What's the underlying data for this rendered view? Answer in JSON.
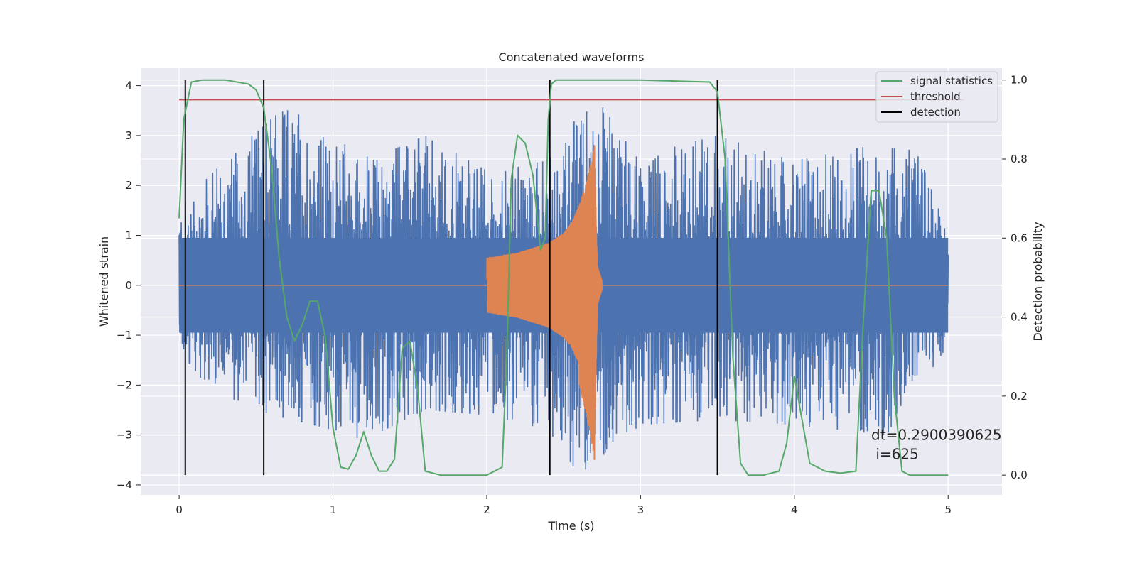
{
  "chart_data": {
    "type": "line",
    "title": "Concatenated waveforms",
    "xlabel": "Time (s)",
    "ylabel": "Whitened strain",
    "y2label": "Detection probability",
    "xlim": [
      -0.25,
      5.35
    ],
    "ylim": [
      -4.2,
      4.35
    ],
    "y2lim": [
      -0.05,
      1.03
    ],
    "x_ticks": [
      0,
      1,
      2,
      3,
      4,
      5
    ],
    "y_ticks": [
      -4,
      -3,
      -2,
      -1,
      0,
      1,
      2,
      3,
      4
    ],
    "y2_ticks": [
      0.0,
      0.2,
      0.4,
      0.6,
      0.8,
      1.0
    ],
    "x_tick_labels": [
      "0",
      "1",
      "2",
      "3",
      "4",
      "5"
    ],
    "y_tick_labels": [
      "−4",
      "−3",
      "−2",
      "−1",
      "0",
      "1",
      "2",
      "3",
      "4"
    ],
    "y2_tick_labels": [
      "0.0",
      "0.2",
      "0.4",
      "0.6",
      "0.8",
      "1.0"
    ],
    "grid": true,
    "legend": {
      "placement": "upper right",
      "entries": [
        {
          "label": "signal statistics",
          "color": "#55a868"
        },
        {
          "label": "threshold",
          "color": "#c44e52"
        },
        {
          "label": "detection",
          "color": "#000000"
        }
      ]
    },
    "colors": {
      "noise": "#4c72b0",
      "waveform": "#dd8452",
      "statistics": "#55a868",
      "threshold": "#c44e52",
      "detection": "#000000",
      "background": "#eaeaf2",
      "grid": "#ffffff"
    },
    "noise_series": {
      "description_free": true,
      "x_range": [
        0,
        5
      ],
      "envelope_points": [
        [
          0.0,
          1.6
        ],
        [
          0.2,
          2.2
        ],
        [
          0.4,
          2.8
        ],
        [
          0.7,
          3.6
        ],
        [
          1.0,
          2.9
        ],
        [
          1.3,
          2.6
        ],
        [
          1.6,
          3.0
        ],
        [
          2.0,
          2.3
        ],
        [
          2.4,
          2.5
        ],
        [
          2.7,
          3.9
        ],
        [
          3.0,
          2.6
        ],
        [
          3.5,
          3.0
        ],
        [
          4.0,
          2.5
        ],
        [
          4.5,
          2.8
        ],
        [
          4.8,
          2.7
        ],
        [
          5.0,
          1.0
        ]
      ],
      "low_points": [
        [
          0.0,
          -1.3
        ],
        [
          0.2,
          -2.1
        ],
        [
          0.6,
          -2.6
        ],
        [
          1.0,
          -2.9
        ],
        [
          1.2,
          -3.1
        ],
        [
          1.6,
          -2.5
        ],
        [
          2.0,
          -2.6
        ],
        [
          2.4,
          -2.9
        ],
        [
          2.6,
          -3.8
        ],
        [
          3.0,
          -2.8
        ],
        [
          3.5,
          -2.7
        ],
        [
          4.0,
          -2.8
        ],
        [
          4.6,
          -3.0
        ],
        [
          5.0,
          -1.2
        ]
      ]
    },
    "waveform_series": {
      "x_range": [
        2.0,
        3.0
      ],
      "envelope": [
        [
          2.0,
          0.55
        ],
        [
          2.1,
          0.6
        ],
        [
          2.2,
          0.65
        ],
        [
          2.3,
          0.75
        ],
        [
          2.4,
          0.85
        ],
        [
          2.5,
          1.05
        ],
        [
          2.55,
          1.25
        ],
        [
          2.6,
          1.6
        ],
        [
          2.65,
          2.1
        ],
        [
          2.68,
          2.5
        ],
        [
          2.7,
          2.8
        ],
        [
          2.72,
          0.4
        ],
        [
          2.75,
          0.1
        ],
        [
          2.8,
          0.05
        ],
        [
          3.0,
          0.0
        ]
      ],
      "min_peak": -3.5
    },
    "statistics_series": {
      "name": "signal statistics",
      "x": [
        0.0,
        0.03,
        0.08,
        0.15,
        0.3,
        0.45,
        0.5,
        0.55,
        0.6,
        0.65,
        0.7,
        0.75,
        0.8,
        0.85,
        0.9,
        0.95,
        1.0,
        1.05,
        1.1,
        1.15,
        1.2,
        1.25,
        1.3,
        1.35,
        1.4,
        1.45,
        1.5,
        1.55,
        1.6,
        1.7,
        1.8,
        1.9,
        2.0,
        2.1,
        2.13,
        2.16,
        2.2,
        2.25,
        2.3,
        2.35,
        2.38,
        2.4,
        2.42,
        2.45,
        2.5,
        3.0,
        3.45,
        3.5,
        3.55,
        3.6,
        3.65,
        3.7,
        3.8,
        3.9,
        3.95,
        4.0,
        4.1,
        4.2,
        4.3,
        4.4,
        4.45,
        4.5,
        4.55,
        4.6,
        4.65,
        4.7,
        4.75,
        4.8,
        4.9,
        5.0
      ],
      "y": [
        0.65,
        0.9,
        0.995,
        1.0,
        1.0,
        0.99,
        0.975,
        0.93,
        0.78,
        0.55,
        0.4,
        0.34,
        0.38,
        0.44,
        0.44,
        0.35,
        0.12,
        0.02,
        0.015,
        0.05,
        0.11,
        0.05,
        0.01,
        0.01,
        0.04,
        0.32,
        0.34,
        0.22,
        0.01,
        0.0,
        0.0,
        0.0,
        0.0,
        0.02,
        0.3,
        0.75,
        0.86,
        0.84,
        0.76,
        0.57,
        0.6,
        0.9,
        0.99,
        1.0,
        1.0,
        1.0,
        0.995,
        0.97,
        0.8,
        0.3,
        0.03,
        0.0,
        0.0,
        0.01,
        0.08,
        0.25,
        0.03,
        0.01,
        0.005,
        0.01,
        0.4,
        0.72,
        0.72,
        0.6,
        0.2,
        0.01,
        0.0,
        0.0,
        0.0,
        0.0
      ]
    },
    "threshold": {
      "name": "threshold",
      "value": 0.95,
      "x_range": [
        0,
        5.1
      ]
    },
    "detections": {
      "name": "detection",
      "x": [
        0.04,
        0.55,
        2.41,
        3.5
      ]
    },
    "annotation": {
      "line1": "dt=0.2900390625",
      "line2": " i=625",
      "x": 4.5,
      "y": -3.0
    }
  }
}
